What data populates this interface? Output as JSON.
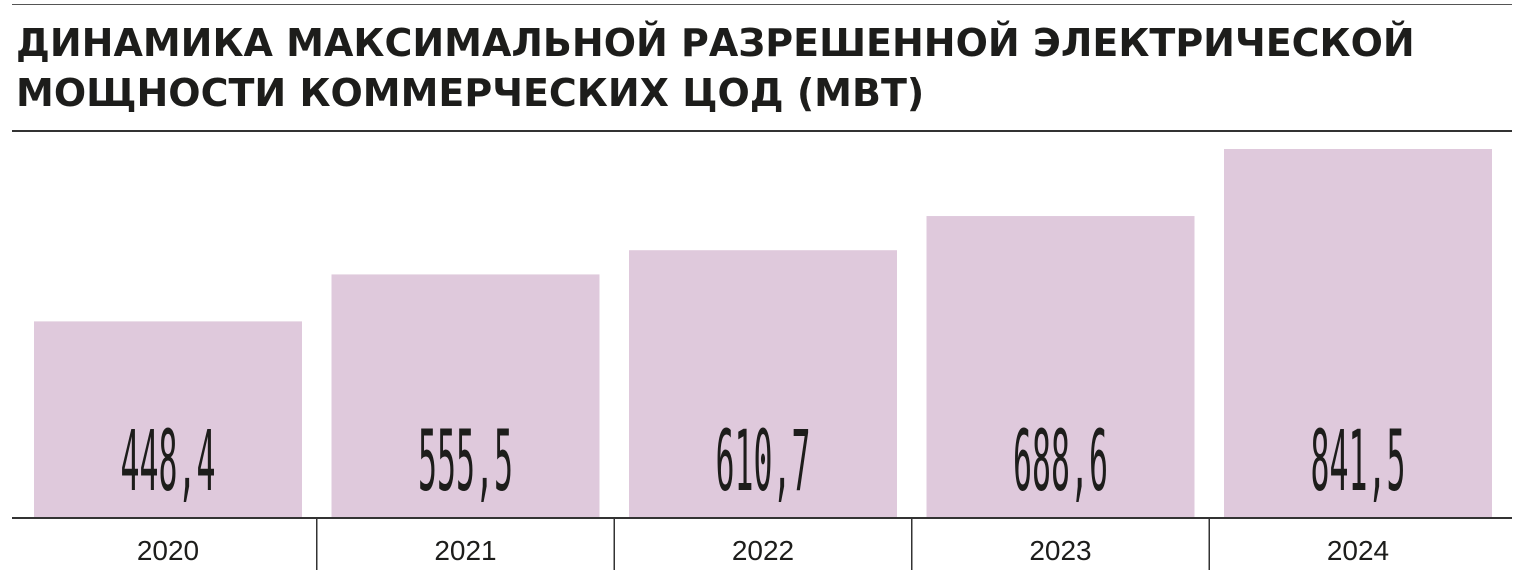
{
  "chart_data": {
    "type": "bar",
    "title": "Динамика максимальной разрешенной электрической мощности коммерческих ЦОД (МВт)",
    "categories": [
      "2020",
      "2021",
      "2022",
      "2023",
      "2024"
    ],
    "values": [
      448.4,
      555.5,
      610.7,
      688.6,
      841.5
    ],
    "value_labels": [
      "448,4",
      "555,5",
      "610,7",
      "688,6",
      "841,5"
    ],
    "xlabel": "",
    "ylabel": "",
    "ylim": [
      0,
      841.5
    ],
    "grid": false,
    "legend": "none",
    "bar_color": "#dfc9dc",
    "text_color": "#1d1d1b"
  }
}
